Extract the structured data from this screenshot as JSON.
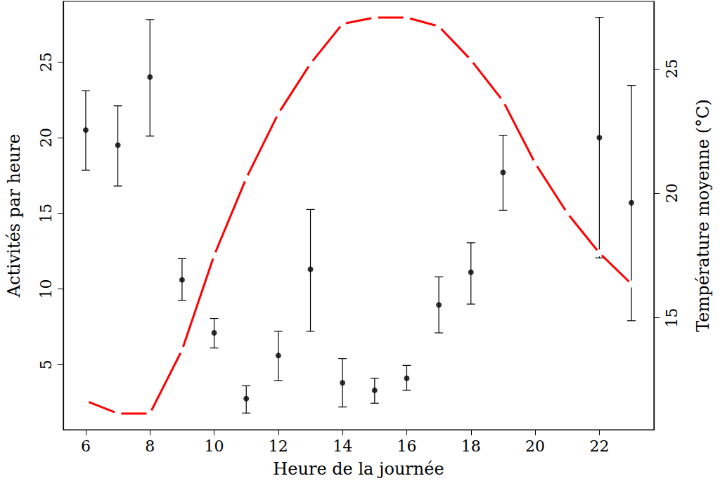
{
  "chart_data": {
    "type": "scatter",
    "x_label": "Heure de la journée",
    "y_label": "Activités par heure",
    "y2_label": "Température moyenne (°C)",
    "x": [
      6,
      7,
      8,
      9,
      10,
      11,
      12,
      13,
      14,
      15,
      16,
      17,
      18,
      19,
      20,
      21,
      22,
      23
    ],
    "xlim": [
      5.3,
      23.7
    ],
    "xticks": [
      6,
      8,
      10,
      12,
      14,
      16,
      18,
      20,
      22
    ],
    "ylim": [
      0.7,
      29
    ],
    "yticks": [
      5,
      10,
      15,
      20,
      25
    ],
    "y2lim": [
      10.5,
      27.7
    ],
    "y2ticks": [
      15,
      20,
      25
    ],
    "grid": false,
    "series": [
      {
        "type": "scatter",
        "color": "#000000",
        "marker": "filled_circle",
        "values": [
          20.5,
          19.5,
          24.0,
          10.6,
          7.1,
          2.75,
          5.6,
          11.3,
          3.8,
          3.3,
          4.1,
          8.95,
          11.1,
          17.7,
          null,
          null,
          20.0,
          15.7
        ],
        "lower": [
          17.85,
          16.8,
          20.1,
          9.25,
          6.1,
          1.8,
          3.95,
          7.2,
          2.2,
          2.45,
          3.3,
          7.1,
          9.0,
          15.2,
          null,
          null,
          12.05,
          7.9
        ],
        "upper": [
          23.1,
          22.1,
          27.8,
          12.0,
          8.05,
          3.6,
          7.2,
          15.25,
          5.4,
          4.1,
          4.95,
          10.8,
          13.05,
          20.15,
          null,
          null,
          27.95,
          23.45
        ]
      },
      {
        "type": "line",
        "axis": "y2",
        "color": "#ff0000",
        "marker": "open_circle",
        "line_style": "solid",
        "values": [
          11.66,
          11.15,
          11.15,
          13.7,
          17.5,
          20.6,
          23.2,
          25.2,
          26.8,
          27.05,
          27.05,
          26.7,
          25.35,
          23.7,
          21.2,
          19.2,
          17.6,
          16.35
        ]
      }
    ]
  }
}
